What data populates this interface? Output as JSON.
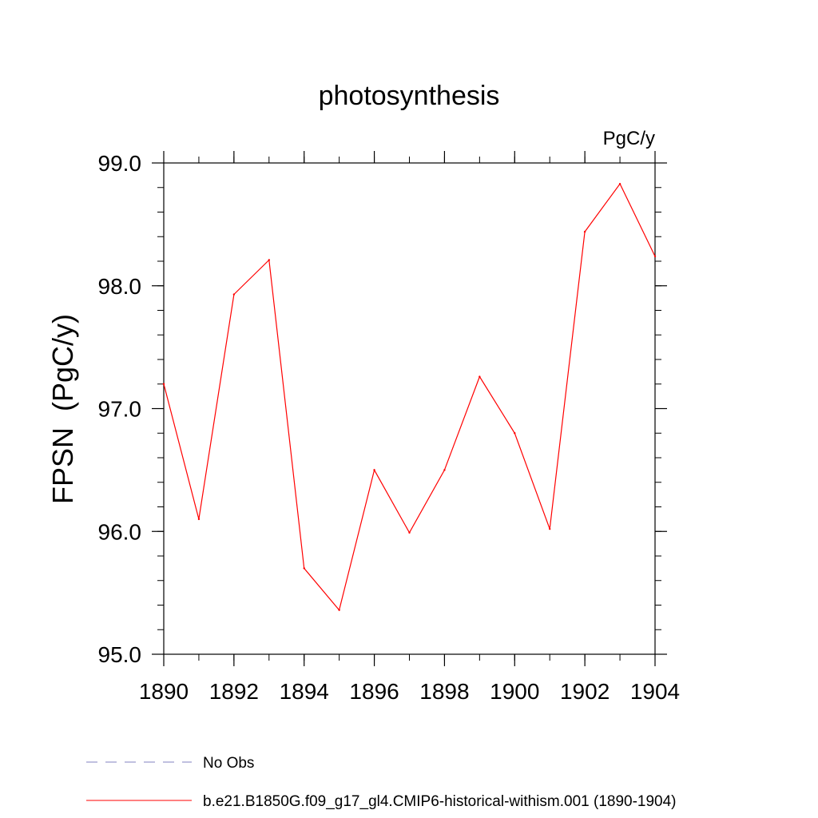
{
  "chart_data": {
    "type": "line",
    "title": "photosynthesis",
    "units_label": "PgC/y",
    "ylabel": "FPSN  (PgC/y)",
    "xlabel": "",
    "xlim": [
      1890,
      1904
    ],
    "ylim": [
      95.0,
      99.0
    ],
    "x_ticks": [
      "1890",
      "1892",
      "1894",
      "1896",
      "1898",
      "1900",
      "1902",
      "1904"
    ],
    "y_ticks": [
      "95.0",
      "96.0",
      "97.0",
      "98.0",
      "99.0"
    ],
    "grid": false,
    "legend_position": "bottom",
    "series": [
      {
        "name": "b.e21.B1850G.f09_g17_gl4.CMIP6-historical-withism.001 (1890-1904)",
        "color": "#ff0000",
        "x": [
          1890,
          1891,
          1892,
          1893,
          1894,
          1895,
          1896,
          1897,
          1898,
          1899,
          1900,
          1901,
          1902,
          1903,
          1904
        ],
        "values": [
          97.2,
          96.1,
          97.93,
          98.21,
          95.7,
          95.36,
          96.5,
          95.99,
          96.5,
          97.26,
          96.8,
          96.02,
          98.44,
          98.83,
          98.24
        ]
      }
    ],
    "legend": [
      {
        "label": "No Obs",
        "color": "#8080c0",
        "style": "dashed"
      },
      {
        "label": "b.e21.B1850G.f09_g17_gl4.CMIP6-historical-withism.001 (1890-1904)",
        "color": "#ff0000",
        "style": "solid"
      }
    ]
  }
}
